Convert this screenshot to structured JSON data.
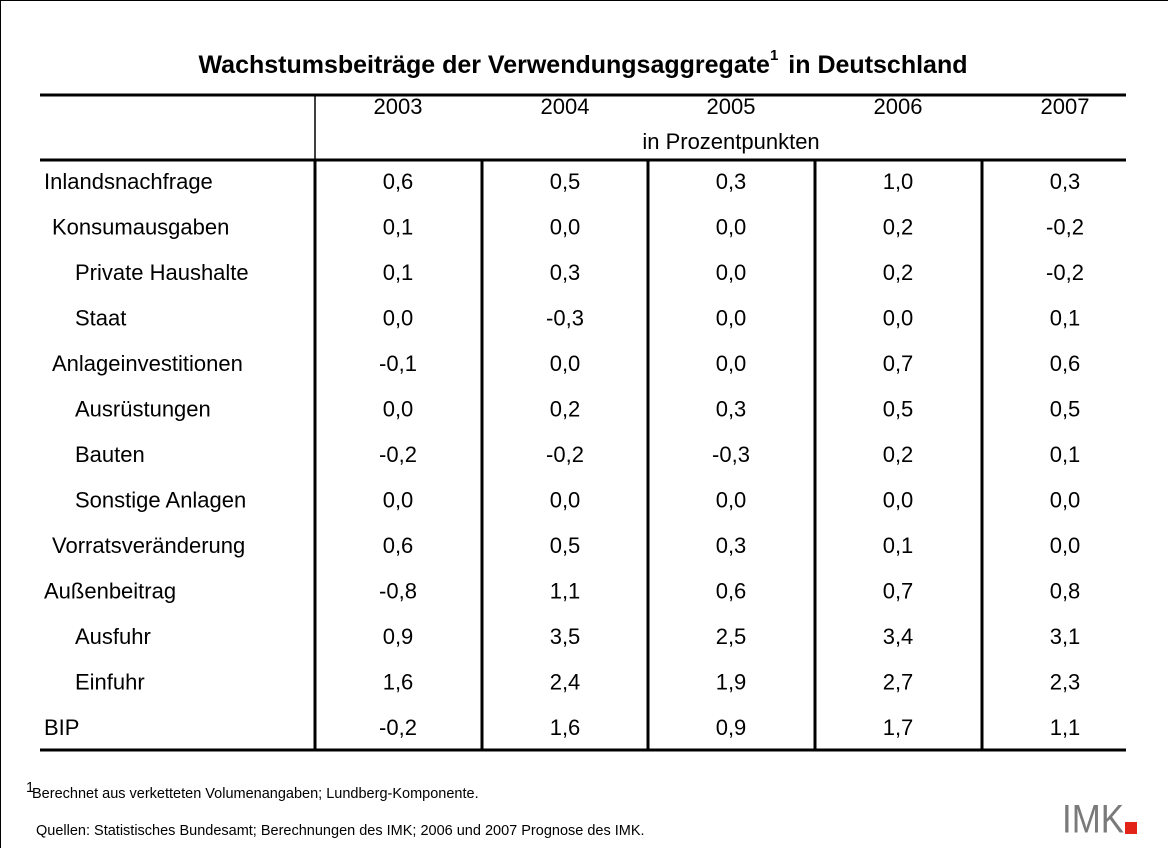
{
  "title": {
    "text": "Wachstumsbeiträge der Verwendungsaggregate",
    "sup": "1",
    "suffix": "in Deutschland"
  },
  "table": {
    "columns": [
      "2003",
      "2004",
      "2005",
      "2006",
      "2007"
    ],
    "unit": "in Prozentpunkten",
    "rows": [
      [
        "Inlandsnachfrage",
        "0,6",
        "0,5",
        "0,3",
        "1,0",
        "0,3"
      ],
      [
        "Konsumausgaben",
        "0,1",
        "0,0",
        "0,0",
        "0,2",
        "-0,2"
      ],
      [
        "Private Haushalte",
        "0,1",
        "0,3",
        "0,0",
        "0,2",
        "-0,2"
      ],
      [
        "Staat",
        "0,0",
        "-0,3",
        "0,0",
        "0,0",
        "0,1"
      ],
      [
        "Anlageinvestitionen",
        "-0,1",
        "0,0",
        "0,0",
        "0,7",
        "0,6"
      ],
      [
        "Ausrüstungen",
        "0,0",
        "0,2",
        "0,3",
        "0,5",
        "0,5"
      ],
      [
        "Bauten",
        "-0,2",
        "-0,2",
        "-0,3",
        "0,2",
        "0,1"
      ],
      [
        "Sonstige Anlagen",
        "0,0",
        "0,0",
        "0,0",
        "0,0",
        "0,0"
      ],
      [
        "Vorratsveränderung",
        "0,6",
        "0,5",
        "0,3",
        "0,1",
        "0,0"
      ],
      [
        "Außenbeitrag",
        "-0,8",
        "1,1",
        "0,6",
        "0,7",
        "0,8"
      ],
      [
        "Ausfuhr",
        "0,9",
        "3,5",
        "2,5",
        "3,4",
        "3,1"
      ],
      [
        "Einfuhr",
        "1,6",
        "2,4",
        "1,9",
        "2,7",
        "2,3"
      ],
      [
        "BIP",
        "-0,2",
        "1,6",
        "0,9",
        "1,7",
        "1,1"
      ]
    ]
  },
  "footnote": {
    "sup": "1",
    "text": "Berechnet aus verketteten Volumenangaben; Lundberg-Komponente."
  },
  "source": "Quellen: Statistisches Bundesamt; Berechnungen des IMK; 2006 und 2007 Prognose des IMK.",
  "logo": "IMK"
}
